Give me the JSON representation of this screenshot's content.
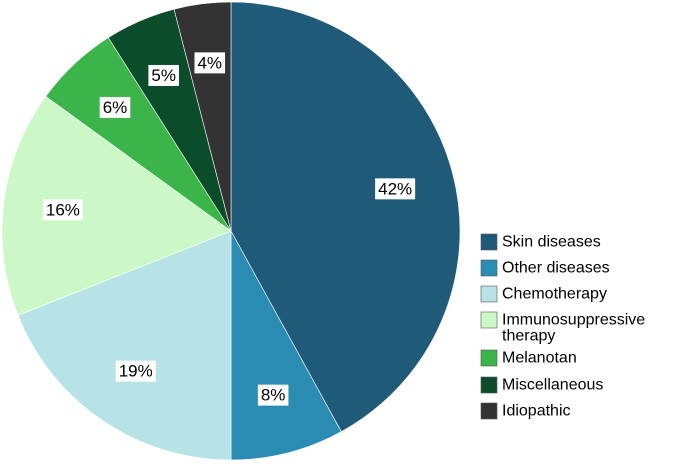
{
  "chart_data": {
    "type": "pie",
    "title": "",
    "slices": [
      {
        "label": "Skin diseases",
        "value": 42,
        "display": "42%",
        "color": "#1f5a78"
      },
      {
        "label": "Other diseases",
        "value": 8,
        "display": "8%",
        "color": "#2b8cb3"
      },
      {
        "label": "Chemotherapy",
        "value": 19,
        "display": "19%",
        "color": "#b7e3e6"
      },
      {
        "label": "Immunosuppressive therapy",
        "value": 16,
        "display": "16%",
        "color": "#ccf8c7"
      },
      {
        "label": "Melanotan",
        "value": 6,
        "display": "6%",
        "color": "#3bb54a"
      },
      {
        "label": "Miscellaneous",
        "value": 5,
        "display": "5%",
        "color": "#0b4d2b"
      },
      {
        "label": "Idiopathic",
        "value": 4,
        "display": "4%",
        "color": "#333333"
      }
    ],
    "legend": {
      "placement": "right",
      "items": [
        {
          "lines": [
            "Skin diseases"
          ]
        },
        {
          "lines": [
            "Other diseases"
          ]
        },
        {
          "lines": [
            "Chemotherapy"
          ]
        },
        {
          "lines": [
            "Immunosuppressive",
            "therapy"
          ]
        },
        {
          "lines": [
            "Melanotan"
          ]
        },
        {
          "lines": [
            "Miscellaneous"
          ]
        },
        {
          "lines": [
            "Idiopathic"
          ]
        }
      ]
    }
  }
}
